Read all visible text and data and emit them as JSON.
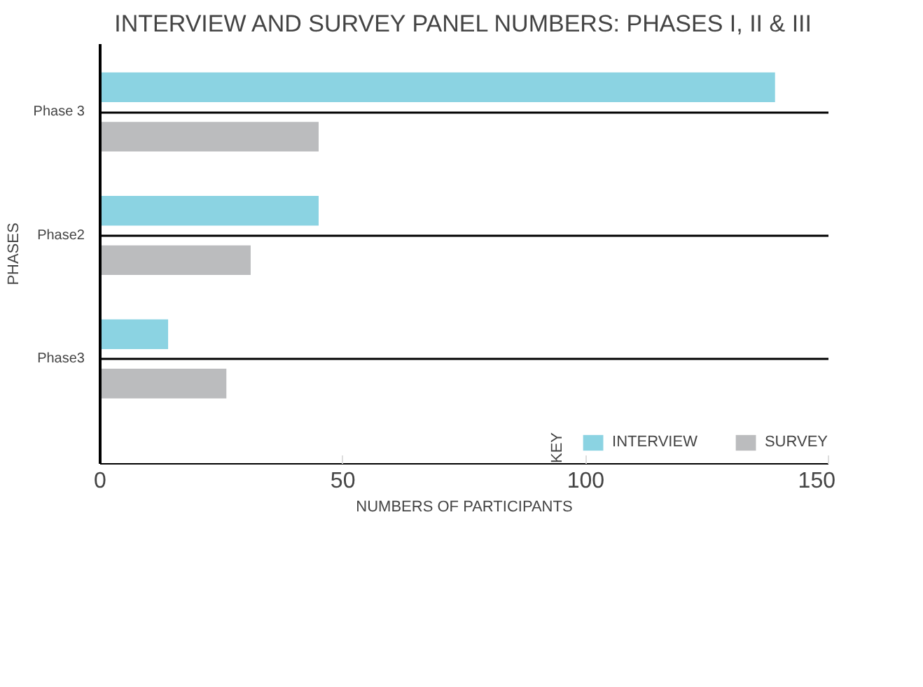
{
  "chart_data": {
    "type": "bar",
    "orientation": "horizontal",
    "title": "INTERVIEW AND SURVEY PANEL NUMBERS: PHASES I, II & III",
    "xlabel": "NUMBERS OF PARTICIPANTS",
    "ylabel": "PHASES",
    "legend_title": "KEY",
    "categories": [
      "Phase 3",
      "Phase2",
      "Phase3"
    ],
    "series": [
      {
        "name": "INTERVIEW",
        "color": "#8bd3e2",
        "values": [
          139,
          45,
          14
        ]
      },
      {
        "name": "SURVEY",
        "color": "#bbbcbe",
        "values": [
          45,
          31,
          26
        ]
      }
    ],
    "xlim": [
      0,
      150
    ],
    "xticks": [
      0,
      50,
      100,
      150
    ],
    "grid": "y",
    "legend": "bottom"
  }
}
